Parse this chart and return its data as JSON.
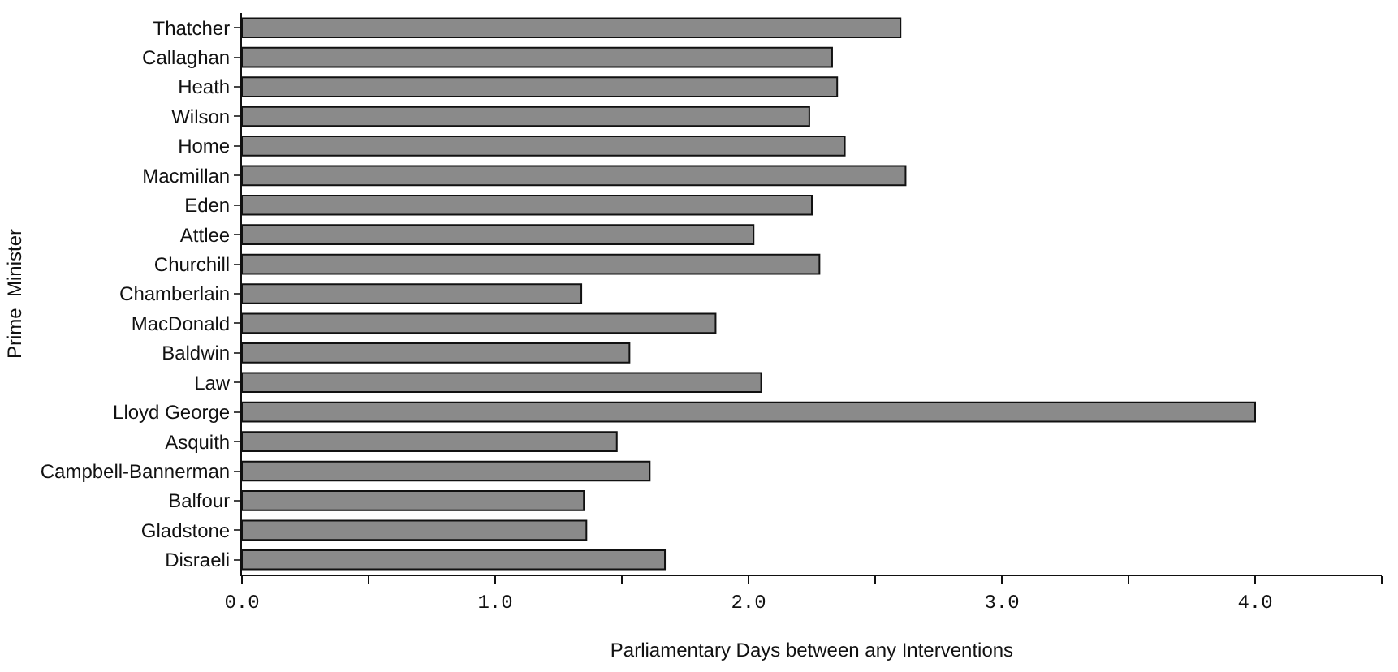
{
  "chart_data": {
    "type": "bar",
    "orientation": "horizontal",
    "xlabel": "Parliamentary Days between any Interventions",
    "ylabel": "Prime  Minister",
    "categories": [
      "Thatcher",
      "Callaghan",
      "Heath",
      "Wilson",
      "Home",
      "Macmillan",
      "Eden",
      "Attlee",
      "Churchill",
      "Chamberlain",
      "MacDonald",
      "Baldwin",
      "Law",
      "Lloyd George",
      "Asquith",
      "Campbell-Bannerman",
      "Balfour",
      "Gladstone",
      "Disraeli"
    ],
    "values": [
      2.6,
      2.33,
      2.35,
      2.24,
      2.38,
      2.62,
      2.25,
      2.02,
      2.28,
      1.34,
      1.87,
      1.53,
      2.05,
      4.0,
      1.48,
      1.61,
      1.35,
      1.36,
      1.67
    ],
    "color": "#8a8a8a",
    "xlim": [
      0,
      4.5
    ],
    "xticks": [
      {
        "value": 0,
        "label": "0.0"
      },
      {
        "value": 0.5,
        "label": null
      },
      {
        "value": 1,
        "label": "1.0"
      },
      {
        "value": 1.5,
        "label": null
      },
      {
        "value": 2,
        "label": "2.0"
      },
      {
        "value": 2.5,
        "label": null
      },
      {
        "value": 3,
        "label": "3.0"
      },
      {
        "value": 3.5,
        "label": null
      },
      {
        "value": 4,
        "label": "4.0"
      },
      {
        "value": 4.5,
        "label": null
      }
    ],
    "grid": false
  }
}
